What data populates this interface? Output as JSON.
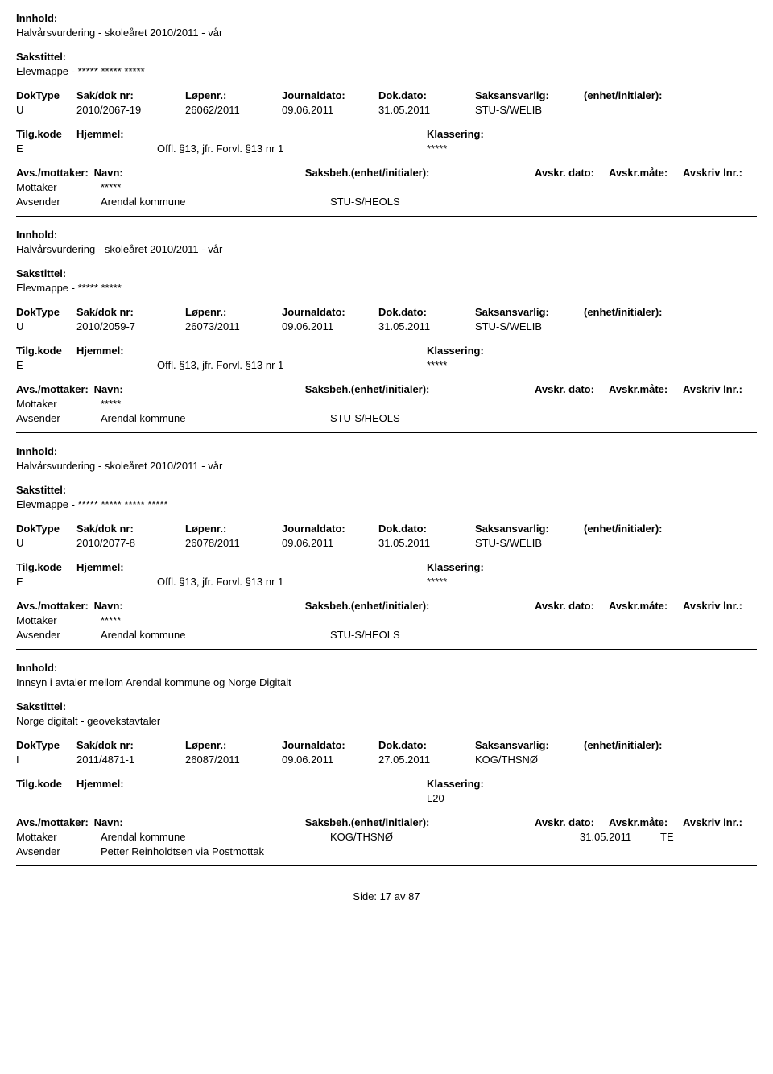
{
  "labels": {
    "innhold": "Innhold:",
    "sakstittel": "Sakstittel:",
    "doktype": "DokType",
    "saknr": "Sak/dok nr:",
    "lopenr": "Løpenr.:",
    "journaldato": "Journaldato:",
    "dokdato": "Dok.dato:",
    "saksansvarlig": "Saksansvarlig:",
    "enhet": "(enhet/initialer):",
    "tilgkode": "Tilg.kode",
    "hjemmel": "Hjemmel:",
    "klassering": "Klassering:",
    "avsmottaker": "Avs./mottaker:",
    "navn": "Navn:",
    "saksbeh": "Saksbeh.(enhet/initialer):",
    "avskrdato": "Avskr. dato:",
    "avskrmate": "Avskr.måte:",
    "avskrivlnr": "Avskriv lnr.:",
    "mottaker": "Mottaker",
    "avsender": "Avsender"
  },
  "records": [
    {
      "innhold": "Halvårsvurdering - skoleåret 2010/2011 - vår",
      "sakstittel": "Elevmappe - ***** ***** *****",
      "doktype": "U",
      "saknr": "2010/2067-19",
      "lopenr": "26062/2011",
      "journaldato": "09.06.2011",
      "dokdato": "31.05.2011",
      "saksansvarlig": "STU-S/WELIB",
      "tilgkode": "E",
      "hjemmel": "Offl. §13, jfr. Forvl. §13 nr 1",
      "klassering": "*****",
      "mottaker_navn": "*****",
      "avsender_navn": "Arendal kommune",
      "saksbeh_val": "STU-S/HEOLS",
      "avskrdato_val": "",
      "avskrmate_val": ""
    },
    {
      "innhold": "Halvårsvurdering - skoleåret 2010/2011 - vår",
      "sakstittel": "Elevmappe - ***** *****",
      "doktype": "U",
      "saknr": "2010/2059-7",
      "lopenr": "26073/2011",
      "journaldato": "09.06.2011",
      "dokdato": "31.05.2011",
      "saksansvarlig": "STU-S/WELIB",
      "tilgkode": "E",
      "hjemmel": "Offl. §13, jfr. Forvl. §13 nr 1",
      "klassering": "*****",
      "mottaker_navn": "*****",
      "avsender_navn": "Arendal kommune",
      "saksbeh_val": "STU-S/HEOLS",
      "avskrdato_val": "",
      "avskrmate_val": ""
    },
    {
      "innhold": "Halvårsvurdering - skoleåret 2010/2011 - vår",
      "sakstittel": "Elevmappe - ***** ***** ***** *****",
      "doktype": "U",
      "saknr": "2010/2077-8",
      "lopenr": "26078/2011",
      "journaldato": "09.06.2011",
      "dokdato": "31.05.2011",
      "saksansvarlig": "STU-S/WELIB",
      "tilgkode": "E",
      "hjemmel": "Offl. §13, jfr. Forvl. §13 nr 1",
      "klassering": "*****",
      "mottaker_navn": "*****",
      "avsender_navn": "Arendal kommune",
      "saksbeh_val": "STU-S/HEOLS",
      "avskrdato_val": "",
      "avskrmate_val": ""
    },
    {
      "innhold": "Innsyn i avtaler mellom Arendal kommune og Norge Digitalt",
      "sakstittel": "Norge digitalt - geovekstavtaler",
      "doktype": "I",
      "saknr": "2011/4871-1",
      "lopenr": "26087/2011",
      "journaldato": "09.06.2011",
      "dokdato": "27.05.2011",
      "saksansvarlig": "KOG/THSNØ",
      "tilgkode": "",
      "hjemmel": "",
      "klassering": "L20",
      "mottaker_navn": "Arendal kommune",
      "avsender_navn": "Petter Reinholdtsen via Postmottak",
      "saksbeh_val": "KOG/THSNØ",
      "avskrdato_val": "31.05.2011",
      "avskrmate_val": "TE"
    }
  ],
  "footer": {
    "side_label": "Side:",
    "page_current": "17",
    "page_sep": "av",
    "page_total": "87"
  }
}
